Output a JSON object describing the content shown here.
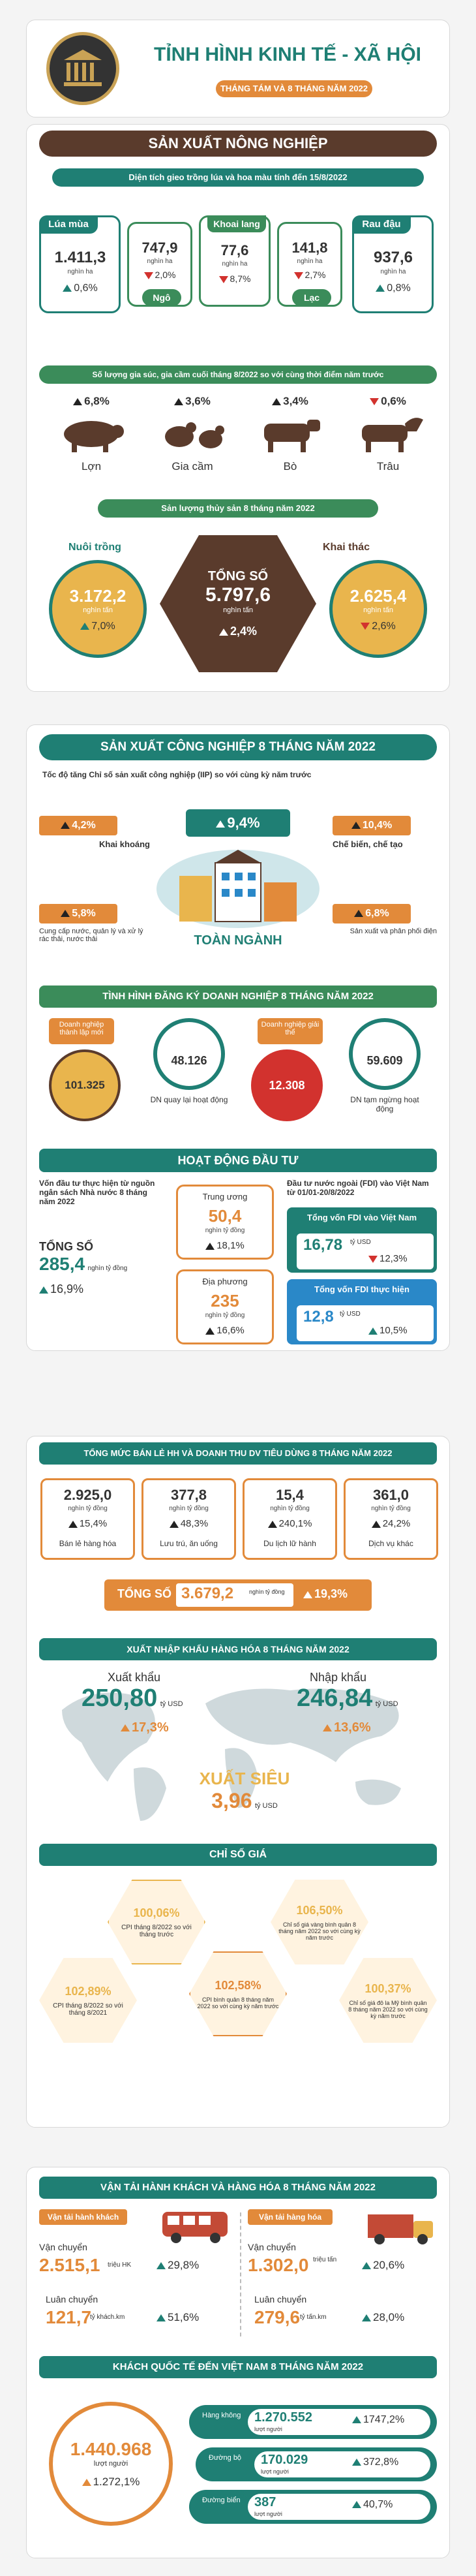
{
  "colors": {
    "teal": "#1f7f74",
    "brown": "#5a3b2c",
    "orange": "#e28a3a",
    "red": "#d2322e",
    "green": "#3b8c5a",
    "blue": "#2a88c8"
  },
  "header": {
    "title": "TỈNH HÌNH KINH TẾ - XÃ HỘI",
    "subtitle": "THÁNG TÁM VÀ 8 THÁNG NĂM 2022"
  },
  "agri": {
    "title": "SẢN XUẤT NÔNG NGHIỆP",
    "area_title": "Diện tích gieo trồng lúa và hoa màu tính đến 15/8/2022",
    "crops": [
      {
        "name": "Lúa mùa",
        "value": "1.411,3",
        "unit": "nghìn ha",
        "change": "0,6%",
        "dir": "up"
      },
      {
        "name": "Ngô",
        "value": "747,9",
        "unit": "nghìn ha",
        "change": "2,0%",
        "dir": "down"
      },
      {
        "name": "Khoai lang",
        "value": "77,6",
        "unit": "nghìn ha",
        "change": "8,7%",
        "dir": "down"
      },
      {
        "name": "Lạc",
        "value": "141,8",
        "unit": "nghìn ha",
        "change": "2,7%",
        "dir": "down"
      },
      {
        "name": "Rau đậu",
        "value": "937,6",
        "unit": "nghìn ha",
        "change": "0,8%",
        "dir": "up"
      }
    ],
    "livestock_title": "Số lượng gia súc, gia cầm cuối tháng 8/2022 so với cùng thời điểm năm trước",
    "livestock": [
      {
        "name": "Lợn",
        "change": "6,8%",
        "dir": "up"
      },
      {
        "name": "Gia cầm",
        "change": "3,6%",
        "dir": "up"
      },
      {
        "name": "Bò",
        "change": "3,4%",
        "dir": "up"
      },
      {
        "name": "Trâu",
        "change": "0,6%",
        "dir": "down"
      }
    ],
    "fish_title": "Sản lượng thủy sản 8 tháng năm 2022",
    "fish": {
      "left": {
        "label": "Nuôi trồng",
        "value": "3.172,2",
        "unit": "nghìn tấn",
        "change": "7,0%",
        "dir": "up"
      },
      "total": {
        "label": "TỔNG SỐ",
        "value": "5.797,6",
        "unit": "nghìn tấn",
        "change": "2,4%",
        "dir": "up"
      },
      "right": {
        "label": "Khai thác",
        "value": "2.625,4",
        "unit": "nghìn tấn",
        "change": "2,6%",
        "dir": "down"
      }
    }
  },
  "industry": {
    "title": "SẢN XUẤT CÔNG NGHIỆP 8 THÁNG NĂM 2022",
    "iip_title": "Tốc độ tăng Chỉ số sản xuất công nghiệp (IIP) so với cùng kỳ năm trước",
    "total": {
      "label": "TOÀN NGÀNH",
      "change": "9,4%"
    },
    "items": [
      {
        "name": "Khai khoáng",
        "change": "4,2%"
      },
      {
        "name": "Chế biến, chế tạo",
        "change": "10,4%"
      },
      {
        "name": "Cung cấp nước, quản lý và xử lý rác thải, nước thải",
        "change": "5,8%"
      },
      {
        "name": "Sản xuất và phân phối điện",
        "change": "6,8%"
      }
    ],
    "biz_title": "TÌNH HÌNH ĐĂNG KÝ DOANH NGHIỆP 8 THÁNG NĂM 2022",
    "biz": [
      {
        "name": "Doanh nghiệp thành lập mới",
        "value": "101.325"
      },
      {
        "name": "DN quay lại hoạt động",
        "value": "48.126"
      },
      {
        "name": "Doanh nghiệp giải thể",
        "value": "12.308"
      },
      {
        "name": "DN tạm ngừng hoạt động",
        "value": "59.609"
      }
    ],
    "invest_title": "HOẠT ĐỘNG ĐẦU TƯ",
    "state_title": "Vốn đầu tư thực hiện từ nguồn ngân sách Nhà nước 8 tháng năm 2022",
    "state_total": {
      "label": "TỔNG SỐ",
      "value": "285,4",
      "unit": "nghìn tỷ đồng",
      "change": "16,9%"
    },
    "central": {
      "label": "Trung ương",
      "value": "50,4",
      "unit": "nghìn tỷ đồng",
      "change": "18,1%"
    },
    "local": {
      "label": "Địa phương",
      "value": "235",
      "unit": "nghìn tỷ đồng",
      "change": "16,6%"
    },
    "fdi_title": "Đầu tư nước ngoài (FDI) vào Việt Nam từ 01/01-20/8/2022",
    "fdi_reg": {
      "label": "Tổng vốn FDI vào Việt Nam",
      "value": "16,78",
      "unit": "tỷ USD",
      "change": "12,3%",
      "dir": "down"
    },
    "fdi_real": {
      "label": "Tổng vốn FDI thực hiện",
      "value": "12,8",
      "unit": "tỷ USD",
      "change": "10,5%",
      "dir": "up"
    }
  },
  "trade": {
    "retail_title": "TỔNG MỨC BÁN LẺ HH VÀ DOANH THU DV TIÊU DÙNG 8 THÁNG NĂM 2022",
    "retail": [
      {
        "name": "Bán lẻ hàng hóa",
        "value": "2.925,0",
        "unit": "nghìn tỷ đồng",
        "change": "15,4%"
      },
      {
        "name": "Lưu trú, ăn uống",
        "value": "377,8",
        "unit": "nghìn tỷ đồng",
        "change": "48,3%"
      },
      {
        "name": "Du lịch lữ hành",
        "value": "15,4",
        "unit": "nghìn tỷ đồng",
        "change": "240,1%"
      },
      {
        "name": "Dịch vụ khác",
        "value": "361,0",
        "unit": "nghìn tỷ đồng",
        "change": "24,2%"
      }
    ],
    "retail_total": {
      "label": "TỔNG SỐ",
      "value": "3.679,2",
      "unit": "nghìn tỷ đồng",
      "change": "19,3%"
    },
    "xnk_title": "XUẤT NHẬP KHẨU HÀNG HÓA 8 THÁNG NĂM 2022",
    "export": {
      "label": "Xuất khẩu",
      "value": "250,80",
      "unit": "tỷ USD",
      "change": "17,3%"
    },
    "import": {
      "label": "Nhập khẩu",
      "value": "246,84",
      "unit": "tỷ USD",
      "change": "13,6%"
    },
    "surplus": {
      "label": "XUẤT SIÊU",
      "value": "3,96",
      "unit": "tỷ USD"
    },
    "cpi_title": "CHỈ SỐ GIÁ",
    "cpi": [
      {
        "value": "100,06%",
        "text": "CPI tháng 8/2022 so với tháng trước"
      },
      {
        "value": "106,50%",
        "text": "Chỉ số giá vàng bình quân 8 tháng năm 2022 so với cùng kỳ năm trước"
      },
      {
        "value": "102,89%",
        "text": "CPI tháng 8/2022 so với tháng 8/2021"
      },
      {
        "value": "102,58%",
        "text": "CPI bình quân 8 tháng năm 2022 so với cùng kỳ năm trước"
      },
      {
        "value": "100,37%",
        "text": "Chỉ số giá đô la Mỹ bình quân 8 tháng năm 2022 so với cùng kỳ năm trước"
      }
    ]
  },
  "transport": {
    "title": "VẬN TẢI HÀNH KHÁCH VÀ HÀNG HÓA 8 THÁNG NĂM 2022",
    "pass": {
      "label": "Vận tải hành khách",
      "move_label": "Vận chuyển",
      "move_value": "2.515,1",
      "move_unit": "triệu HK",
      "move_change": "29,8%",
      "turn_label": "Luân chuyển",
      "turn_value": "121,7",
      "turn_unit": "tỷ khách.km",
      "turn_change": "51,6%"
    },
    "cargo": {
      "label": "Vận tải hàng hóa",
      "move_label": "Vận chuyển",
      "move_value": "1.302,0",
      "move_unit": "triệu tấn",
      "move_change": "20,6%",
      "turn_label": "Luân chuyển",
      "turn_value": "279,6",
      "turn_unit": "tỷ tấn.km",
      "turn_change": "28,0%"
    },
    "tourist_title": "KHÁCH QUỐC TẾ ĐẾN VIỆT NAM 8 THÁNG NĂM 2022",
    "tourist_total": {
      "value": "1.440.968",
      "unit": "lượt người",
      "change": "1.272,1%"
    },
    "tourist_modes": [
      {
        "name": "Hàng không",
        "value": "1.270.552",
        "unit": "lượt người",
        "change": "1747,2%"
      },
      {
        "name": "Đường bộ",
        "value": "170.029",
        "unit": "lượt người",
        "change": "372,8%"
      },
      {
        "name": "Đường biển",
        "value": "387",
        "unit": "lượt người",
        "change": "40,7%"
      }
    ]
  }
}
